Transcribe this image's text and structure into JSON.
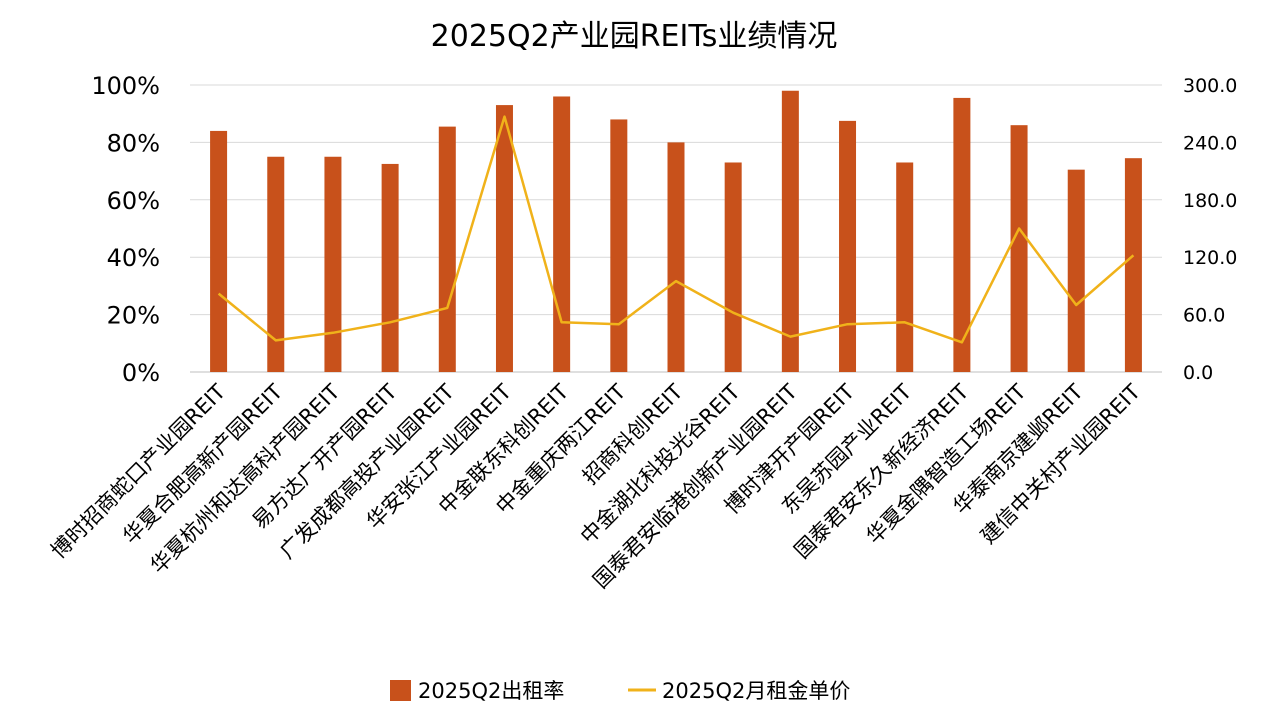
{
  "chart_data": {
    "type": "bar",
    "title": "2025Q2产业园REITs业绩情况",
    "categories": [
      "博时招商蛇口产业园REIT",
      "华夏合肥高新产园REIT",
      "华夏杭州和达高科产园REIT",
      "易方达广开产园REIT",
      "广发成都高投产业园REIT",
      "华安张江产业园REIT",
      "中金联东科创REIT",
      "中金重庆两江REIT",
      "招商科创REIT",
      "中金湖北科投光谷REIT",
      "国泰君安临港创新产业园REIT",
      "博时津开产园REIT",
      "东吴苏园产业REIT",
      "国泰君安东久新经济REIT",
      "华夏金隅智造工场REIT",
      "华泰南京建邺REIT",
      "建信中关村产业园REIT"
    ],
    "series": [
      {
        "name": "2025Q2出租率",
        "type": "bar",
        "axis": "left",
        "color": "#c8511b",
        "values": [
          84,
          75,
          75,
          72.5,
          85.5,
          93,
          96,
          88,
          80,
          73,
          98,
          87.5,
          73,
          95.5,
          86,
          70.5,
          74.5
        ]
      },
      {
        "name": "2025Q2月租金单价",
        "type": "line",
        "axis": "right",
        "color": "#f0b21a",
        "values": [
          82,
          33,
          41,
          52,
          67,
          267,
          52,
          50,
          95,
          62,
          37,
          50,
          52,
          31,
          150,
          70,
          122
        ]
      }
    ],
    "left_axis": {
      "min": 0,
      "max": 100,
      "ticks": [
        "0%",
        "20%",
        "40%",
        "60%",
        "80%",
        "100%"
      ]
    },
    "right_axis": {
      "min": 0,
      "max": 300,
      "ticks": [
        "0.0",
        "60.0",
        "120.0",
        "180.0",
        "240.0",
        "300.0"
      ]
    },
    "grid": true,
    "legend": "bottom"
  }
}
